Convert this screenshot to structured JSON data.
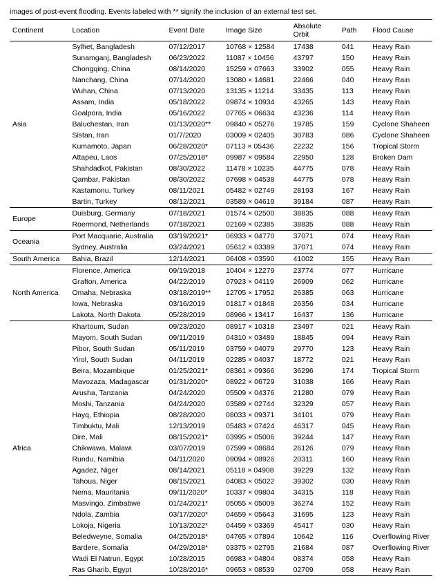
{
  "caption": "images of post-event flooding. Events labeled with ** signify the inclusion of an external test set.",
  "columns": [
    "Continent",
    "Location",
    "Event Date",
    "Image Size",
    "Absolute Orbit",
    "Path",
    "Flood Cause"
  ],
  "groups": [
    {
      "continent": "Asia",
      "rows": [
        {
          "location": "Sylhet, Bangladesh",
          "date": "07/12/2017",
          "size": "10768 × 12584",
          "orbit": "17438",
          "path": "041",
          "cause": "Heavy Rain"
        },
        {
          "location": "Sunamganj, Bangladesh",
          "date": "06/23/2022",
          "size": "11087 × 10456",
          "orbit": "43797",
          "path": "150",
          "cause": "Heavy Rain"
        },
        {
          "location": "Chongqing, China",
          "date": "08/14/2020",
          "size": "15259 × 07663",
          "orbit": "33902",
          "path": "055",
          "cause": "Heavy Rain"
        },
        {
          "location": "Nanchang, China",
          "date": "07/14/2020",
          "size": "13080 × 14681",
          "orbit": "22466",
          "path": "040",
          "cause": "Heavy Rain"
        },
        {
          "location": "Wuhan, China",
          "date": "07/13/2020",
          "size": "13135 × 11214",
          "orbit": "33435",
          "path": "113",
          "cause": "Heavy Rain"
        },
        {
          "location": "Assam, India",
          "date": "05/18/2022",
          "size": "09874 × 10934",
          "orbit": "43265",
          "path": "143",
          "cause": "Heavy Rain"
        },
        {
          "location": "Goalpora, India",
          "date": "05/16/2022",
          "size": "07765 × 06634",
          "orbit": "43236",
          "path": "114",
          "cause": "Heavy Rain"
        },
        {
          "location": "Baluchestan, Iran",
          "date": "01/13/2020**",
          "size": "09840 × 05276",
          "orbit": "19785",
          "path": "159",
          "cause": "Cyclone Shaheen"
        },
        {
          "location": "Sistan, Iran",
          "date": "01/7/2020",
          "size": "03009 × 02405",
          "orbit": "30783",
          "path": "086",
          "cause": "Cyclone Shaheen"
        },
        {
          "location": "Kumamoto, Japan",
          "date": "06/28/2020*",
          "size": "07113 × 05436",
          "orbit": "22232",
          "path": "156",
          "cause": "Tropical Storm"
        },
        {
          "location": "Attapeu, Laos",
          "date": "07/25/2018*",
          "size": "09987 × 09584",
          "orbit": "22950",
          "path": "128",
          "cause": "Broken Dam"
        },
        {
          "location": "Shahdadkot, Pakistan",
          "date": "08/30/2022",
          "size": "11478 × 10235",
          "orbit": "44775",
          "path": "078",
          "cause": "Heavy Rain"
        },
        {
          "location": "Qambar, Pakistan",
          "date": "08/30/2022",
          "size": "07698 × 04538",
          "orbit": "44775",
          "path": "078",
          "cause": "Heavy Rain"
        },
        {
          "location": "Kastamonu, Turkey",
          "date": "08/11/2021",
          "size": "05482 × 02749",
          "orbit": "28193",
          "path": "167",
          "cause": "Heavy Rain"
        },
        {
          "location": "Bartin, Turkey",
          "date": "08/12/2021",
          "size": "03589 × 04619",
          "orbit": "39184",
          "path": "087",
          "cause": "Heavy Rain"
        }
      ]
    },
    {
      "continent": "Europe",
      "rows": [
        {
          "location": "Duisburg, Germany",
          "date": "07/18/2021",
          "size": "01574 × 02500",
          "orbit": "38835",
          "path": "088",
          "cause": "Heavy Rain"
        },
        {
          "location": "Roermond, Netherlands",
          "date": "07/18/2021",
          "size": "02169 × 02385",
          "orbit": "38835",
          "path": "088",
          "cause": "Heavy Rain"
        }
      ]
    },
    {
      "continent": "Oceania",
      "rows": [
        {
          "location": "Port Macquarie, Australia",
          "date": "03/19/2021*",
          "size": "06933 × 04770",
          "orbit": "37071",
          "path": "074",
          "cause": "Heavy Rain"
        },
        {
          "location": "Sydney, Australia",
          "date": "03/24/2021",
          "size": "05612 × 03389",
          "orbit": "37071",
          "path": "074",
          "cause": "Heavy Rain"
        }
      ]
    },
    {
      "continent": "South America",
      "rows": [
        {
          "location": "Bahia, Brazil",
          "date": "12/14/2021",
          "size": "06408 × 03590",
          "orbit": "41002",
          "path": "155",
          "cause": "Heavy Rain"
        }
      ]
    },
    {
      "continent": "North America",
      "rows": [
        {
          "location": "Florence, America",
          "date": "09/19/2018",
          "size": "10404 × 12279",
          "orbit": "23774",
          "path": "077",
          "cause": "Hurricane"
        },
        {
          "location": "Grafton, America",
          "date": "04/22/2019",
          "size": "07923 × 04119",
          "orbit": "26909",
          "path": "062",
          "cause": "Hurricane"
        },
        {
          "location": "Omaha, Nebraska",
          "date": "03/18/2019**",
          "size": "12705 × 17952",
          "orbit": "26385",
          "path": "063",
          "cause": "Hurricane"
        },
        {
          "location": "Iowa, Nebraska",
          "date": "03/16/2019",
          "size": "01817 × 01848",
          "orbit": "26356",
          "path": "034",
          "cause": "Hurricane"
        },
        {
          "location": "Lakota, North Dakota",
          "date": "05/28/2019",
          "size": "08966 × 13417",
          "orbit": "16437",
          "path": "136",
          "cause": "Hurricane"
        }
      ]
    },
    {
      "continent": "Africa",
      "rows": [
        {
          "location": "Khartoum, Sudan",
          "date": "09/23/2020",
          "size": "08917 × 10318",
          "orbit": "23497",
          "path": "021",
          "cause": "Heavy Rain"
        },
        {
          "location": "Mayom, South Sudan",
          "date": "09/11/2019",
          "size": "04310 × 03489",
          "orbit": "18845",
          "path": "094",
          "cause": "Heavy Rain"
        },
        {
          "location": "Pibor, South Sudan",
          "date": "05/11/2019",
          "size": "03759 × 04079",
          "orbit": "29770",
          "path": "123",
          "cause": "Heavy Rain"
        },
        {
          "location": "Yirol, South Sudan",
          "date": "04/11/2019",
          "size": "02285 × 04037",
          "orbit": "18772",
          "path": "021",
          "cause": "Heavy Rain"
        },
        {
          "location": "Beira, Mozambique",
          "date": "01/25/2021*",
          "size": "08361 × 09366",
          "orbit": "36296",
          "path": "174",
          "cause": "Tropical Storm"
        },
        {
          "location": "Mavozaza, Madagascar",
          "date": "01/31/2020*",
          "size": "08922 × 06729",
          "orbit": "31038",
          "path": "166",
          "cause": "Heavy Rain"
        },
        {
          "location": "Arusha, Tanzania",
          "date": "04/24/2020",
          "size": "05509 × 04376",
          "orbit": "21280",
          "path": "079",
          "cause": "Heavy Rain"
        },
        {
          "location": "Moshi, Tanzania",
          "date": "04/24/2020",
          "size": "03589 × 02744",
          "orbit": "32329",
          "path": "057",
          "cause": "Heavy Rain"
        },
        {
          "location": "Hayq, Ethiopia",
          "date": "08/28/2020",
          "size": "08033 × 09371",
          "orbit": "34101",
          "path": "079",
          "cause": "Heavy Rain"
        },
        {
          "location": "Timbuktu, Mali",
          "date": "12/13/2019",
          "size": "05483 × 07424",
          "orbit": "46317",
          "path": "045",
          "cause": "Heavy Rain"
        },
        {
          "location": "Dire, Mali",
          "date": "08/15/2021*",
          "size": "03995 × 05006",
          "orbit": "39244",
          "path": "147",
          "cause": "Heavy Rain"
        },
        {
          "location": "Chikwawa, Malawi",
          "date": "03/07/2019",
          "size": "07599 × 08684",
          "orbit": "26126",
          "path": "079",
          "cause": "Heavy Rain"
        },
        {
          "location": "Rundu, Namibia",
          "date": "04/11/2020",
          "size": "09094 × 08926",
          "orbit": "20311",
          "path": "160",
          "cause": "Heavy Rain"
        },
        {
          "location": "Agadez, Niger",
          "date": "08/14/2021",
          "size": "05118 × 04908",
          "orbit": "39229",
          "path": "132",
          "cause": "Heavy Rain"
        },
        {
          "location": "Tahoua, Niger",
          "date": "08/15/2021",
          "size": "04083 × 05022",
          "orbit": "39302",
          "path": "030",
          "cause": "Heavy Rain"
        },
        {
          "location": "Nema, Mauritania",
          "date": "09/11/2020*",
          "size": "10337 × 09804",
          "orbit": "34315",
          "path": "118",
          "cause": "Heavy Rain"
        },
        {
          "location": "Masvingo, Zimbabwe",
          "date": "01/24/2021*",
          "size": "05055 × 05009",
          "orbit": "36274",
          "path": "152",
          "cause": "Heavy Rain"
        },
        {
          "location": "Ndola, Zambia",
          "date": "03/17/2020*",
          "size": "04659 × 05643",
          "orbit": "31695",
          "path": "123",
          "cause": "Heavy Rain"
        },
        {
          "location": "Lokoja, Nigeria",
          "date": "10/13/2022*",
          "size": "04459 × 03369",
          "orbit": "45417",
          "path": "030",
          "cause": "Heavy Rain"
        },
        {
          "location": "Beledweyne, Somalia",
          "date": "04/25/2018*",
          "size": "04765 × 07894",
          "orbit": "10642",
          "path": "116",
          "cause": "Overflowing River"
        },
        {
          "location": "Bardere, Somalia",
          "date": "04/29/2018*",
          "size": "03375 × 02795",
          "orbit": "21684",
          "path": "087",
          "cause": "Overflowing River"
        },
        {
          "location": "Wadi El Natrun, Egypt",
          "date": "10/28/2015",
          "size": "06983 × 04804",
          "orbit": "08374",
          "path": "058",
          "cause": "Heavy Rain"
        },
        {
          "location": "Ras Gharib, Egypt",
          "date": "10/28/2016*",
          "size": "09653 × 08539",
          "orbit": "02709",
          "path": "058",
          "cause": "Heavy Rain"
        }
      ]
    }
  ]
}
